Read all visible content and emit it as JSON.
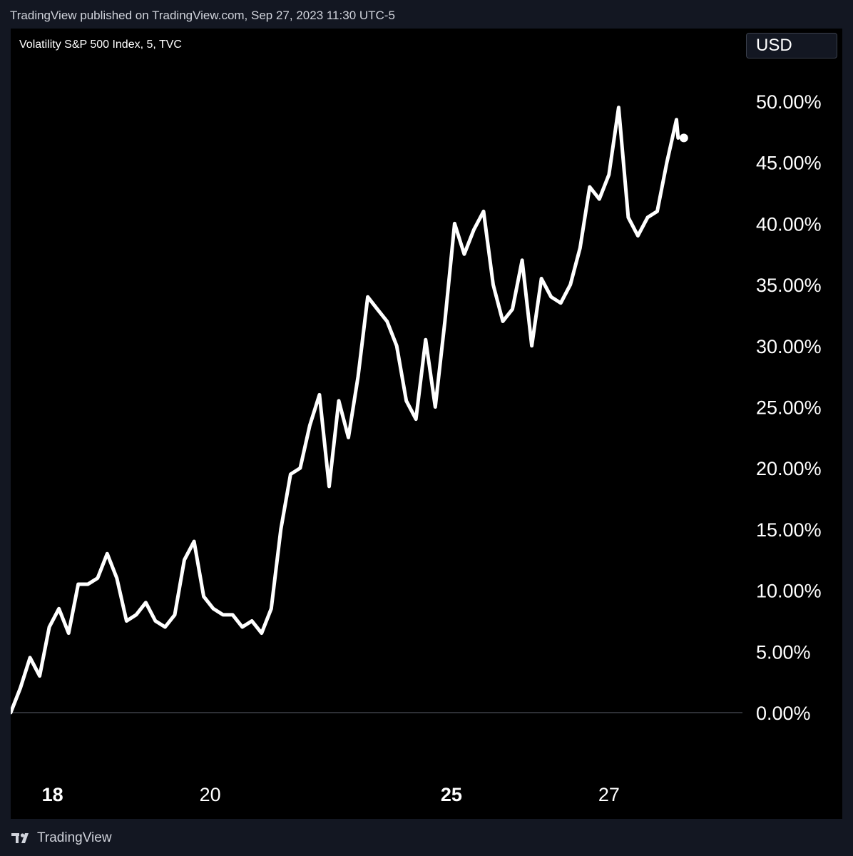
{
  "header": {
    "published_text": "TradingView published on TradingView.com, Sep 27, 2023 11:30 UTC-5"
  },
  "chart": {
    "symbol_title": "Volatility S&P 500 Index, 5, TVC",
    "currency": "USD"
  },
  "footer": {
    "brand": "TradingView",
    "logo_icon": "tradingview-logo-icon"
  },
  "colors": {
    "page_bg": "#131722",
    "plot_bg": "#000000",
    "line": "#ffffff",
    "zero_line": "#5d606b"
  },
  "chart_data": {
    "type": "line",
    "title": "Volatility S&P 500 Index, 5, TVC",
    "xlabel": "",
    "ylabel": "",
    "ylim": [
      0,
      50
    ],
    "y_ticks": [
      "0.00%",
      "5.00%",
      "10.00%",
      "15.00%",
      "20.00%",
      "25.00%",
      "30.00%",
      "35.00%",
      "40.00%",
      "45.00%",
      "50.00%"
    ],
    "x_ticks": [
      {
        "label": "18",
        "bold": true
      },
      {
        "label": "20",
        "bold": false
      },
      {
        "label": "25",
        "bold": true
      },
      {
        "label": "27",
        "bold": false
      }
    ],
    "grid": false,
    "series": [
      {
        "unit": "%",
        "x": [
          0,
          0.6,
          1.2,
          1.8,
          2.4,
          3.0,
          3.6,
          4.2,
          4.8,
          5.4,
          6.0,
          6.6,
          7.2,
          7.8,
          8.4,
          9.0,
          9.6,
          10.2,
          10.8,
          11.4,
          12.0,
          12.6,
          13.2,
          13.8,
          14.4,
          15.0,
          15.6,
          16.2,
          16.8,
          17.4,
          18.0,
          18.6,
          19.2,
          19.8,
          20.4,
          21.0,
          21.6,
          22.2,
          22.8,
          23.4,
          24.0,
          24.6,
          25.2,
          25.8,
          26.4,
          27.0,
          27.6,
          28.2,
          28.8,
          29.4,
          30.0,
          30.6,
          31.2,
          31.8,
          32.4,
          33.0,
          33.6,
          34.2,
          34.8,
          35.4,
          36.0,
          36.6,
          37.2,
          37.8,
          38.4,
          39.0,
          39.6,
          40.2,
          40.8,
          41.4,
          41.5
        ],
        "values": [
          0.0,
          2.0,
          4.5,
          3.0,
          7.0,
          8.5,
          6.5,
          10.5,
          10.5,
          11.0,
          13.0,
          11.0,
          7.5,
          8.0,
          9.0,
          7.5,
          7.0,
          8.0,
          12.5,
          14.0,
          9.5,
          8.5,
          8.0,
          8.0,
          7.0,
          7.5,
          6.5,
          8.5,
          15.0,
          19.5,
          20.0,
          23.5,
          26.0,
          18.5,
          25.5,
          22.5,
          27.5,
          34.0,
          33.0,
          32.0,
          30.0,
          25.5,
          24.0,
          30.5,
          25.0,
          32.0,
          40.0,
          37.5,
          39.5,
          41.0,
          35.0,
          32.0,
          33.0,
          37.0,
          30.0,
          35.5,
          34.0,
          33.5,
          35.0,
          38.0,
          43.0,
          42.0,
          44.0,
          49.5,
          40.5,
          39.0,
          40.5,
          41.0,
          45.0,
          48.5,
          47.0
        ]
      }
    ],
    "x_tick_positions": [
      2.6,
      12.4,
      27.4,
      37.2
    ],
    "xlim": [
      0,
      45.5
    ]
  }
}
